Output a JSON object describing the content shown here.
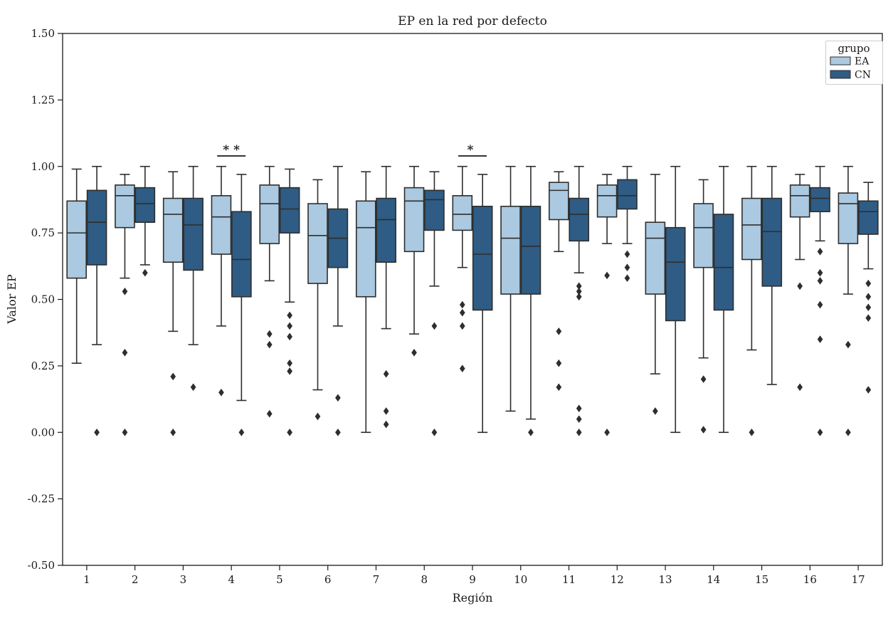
{
  "chart_data": {
    "type": "grouped_boxplot",
    "title": "EP en la red por defecto",
    "xlabel": "Región",
    "ylabel": "Valor EP",
    "ylim": [
      -0.5,
      1.5
    ],
    "yticks": [
      {
        "value": 1.5,
        "label": "1.50"
      },
      {
        "value": 1.25,
        "label": "1.25"
      },
      {
        "value": 1.0,
        "label": "1.00"
      },
      {
        "value": 0.75,
        "label": "0.75"
      },
      {
        "value": 0.5,
        "label": "0.50"
      },
      {
        "value": 0.25,
        "label": "0.25"
      },
      {
        "value": 0.0,
        "label": "0.00"
      },
      {
        "value": -0.25,
        "label": "-0.25"
      },
      {
        "value": -0.5,
        "label": "-0.50"
      }
    ],
    "categories": [
      "1",
      "2",
      "3",
      "4",
      "5",
      "6",
      "7",
      "8",
      "9",
      "10",
      "11",
      "12",
      "13",
      "14",
      "15",
      "16",
      "17"
    ],
    "legend": {
      "title": "grupo",
      "position": "upper right"
    },
    "grid": false,
    "series": [
      {
        "name": "EA",
        "color": "#abc9e0",
        "boxes": [
          {
            "whislo": 0.26,
            "q1": 0.58,
            "med": 0.75,
            "q3": 0.87,
            "whishi": 0.99,
            "fliers": []
          },
          {
            "whislo": 0.58,
            "q1": 0.77,
            "med": 0.89,
            "q3": 0.93,
            "whishi": 0.97,
            "fliers": [
              0.53,
              0.3,
              0.0
            ]
          },
          {
            "whislo": 0.38,
            "q1": 0.64,
            "med": 0.82,
            "q3": 0.88,
            "whishi": 0.98,
            "fliers": [
              0.21,
              0.0
            ]
          },
          {
            "whislo": 0.4,
            "q1": 0.67,
            "med": 0.81,
            "q3": 0.89,
            "whishi": 1.0,
            "fliers": [
              0.15
            ]
          },
          {
            "whislo": 0.57,
            "q1": 0.71,
            "med": 0.86,
            "q3": 0.93,
            "whishi": 1.0,
            "fliers": [
              0.37,
              0.33,
              0.07
            ]
          },
          {
            "whislo": 0.16,
            "q1": 0.56,
            "med": 0.74,
            "q3": 0.86,
            "whishi": 0.95,
            "fliers": [
              0.06
            ]
          },
          {
            "whislo": 0.0,
            "q1": 0.51,
            "med": 0.77,
            "q3": 0.87,
            "whishi": 0.98,
            "fliers": []
          },
          {
            "whislo": 0.37,
            "q1": 0.68,
            "med": 0.87,
            "q3": 0.92,
            "whishi": 1.0,
            "fliers": [
              0.3
            ]
          },
          {
            "whislo": 0.62,
            "q1": 0.76,
            "med": 0.82,
            "q3": 0.89,
            "whishi": 1.0,
            "fliers": [
              0.48,
              0.45,
              0.4,
              0.24
            ]
          },
          {
            "whislo": 0.08,
            "q1": 0.52,
            "med": 0.73,
            "q3": 0.85,
            "whishi": 1.0,
            "fliers": []
          },
          {
            "whislo": 0.68,
            "q1": 0.8,
            "med": 0.91,
            "q3": 0.94,
            "whishi": 0.98,
            "fliers": [
              0.38,
              0.26,
              0.17
            ]
          },
          {
            "whislo": 0.71,
            "q1": 0.81,
            "med": 0.89,
            "q3": 0.93,
            "whishi": 0.97,
            "fliers": [
              0.59,
              0.0
            ]
          },
          {
            "whislo": 0.22,
            "q1": 0.52,
            "med": 0.73,
            "q3": 0.79,
            "whishi": 0.97,
            "fliers": [
              0.08
            ]
          },
          {
            "whislo": 0.28,
            "q1": 0.62,
            "med": 0.77,
            "q3": 0.86,
            "whishi": 0.95,
            "fliers": [
              0.2,
              0.01
            ]
          },
          {
            "whislo": 0.31,
            "q1": 0.65,
            "med": 0.78,
            "q3": 0.88,
            "whishi": 1.0,
            "fliers": [
              0.0
            ]
          },
          {
            "whislo": 0.65,
            "q1": 0.81,
            "med": 0.89,
            "q3": 0.93,
            "whishi": 0.97,
            "fliers": [
              0.55,
              0.17
            ]
          },
          {
            "whislo": 0.52,
            "q1": 0.71,
            "med": 0.86,
            "q3": 0.9,
            "whishi": 1.0,
            "fliers": [
              0.33,
              0.0
            ]
          }
        ]
      },
      {
        "name": "CN",
        "color": "#2e5c84",
        "boxes": [
          {
            "whislo": 0.33,
            "q1": 0.63,
            "med": 0.79,
            "q3": 0.91,
            "whishi": 1.0,
            "fliers": [
              0.0
            ]
          },
          {
            "whislo": 0.63,
            "q1": 0.79,
            "med": 0.86,
            "q3": 0.92,
            "whishi": 1.0,
            "fliers": [
              0.6
            ]
          },
          {
            "whislo": 0.33,
            "q1": 0.61,
            "med": 0.78,
            "q3": 0.88,
            "whishi": 1.0,
            "fliers": [
              0.17
            ]
          },
          {
            "whislo": 0.12,
            "q1": 0.51,
            "med": 0.65,
            "q3": 0.83,
            "whishi": 0.97,
            "fliers": [
              0.0
            ]
          },
          {
            "whislo": 0.49,
            "q1": 0.75,
            "med": 0.84,
            "q3": 0.92,
            "whishi": 0.99,
            "fliers": [
              0.44,
              0.4,
              0.36,
              0.26,
              0.23,
              0.0
            ]
          },
          {
            "whislo": 0.4,
            "q1": 0.62,
            "med": 0.73,
            "q3": 0.84,
            "whishi": 1.0,
            "fliers": [
              0.13,
              0.0
            ]
          },
          {
            "whislo": 0.39,
            "q1": 0.64,
            "med": 0.8,
            "q3": 0.88,
            "whishi": 1.0,
            "fliers": [
              0.22,
              0.08,
              0.03
            ]
          },
          {
            "whislo": 0.55,
            "q1": 0.76,
            "med": 0.875,
            "q3": 0.91,
            "whishi": 0.98,
            "fliers": [
              0.4,
              0.0
            ]
          },
          {
            "whislo": 0.0,
            "q1": 0.46,
            "med": 0.67,
            "q3": 0.85,
            "whishi": 0.97,
            "fliers": []
          },
          {
            "whislo": 0.05,
            "q1": 0.52,
            "med": 0.7,
            "q3": 0.85,
            "whishi": 1.0,
            "fliers": [
              0.0
            ]
          },
          {
            "whislo": 0.6,
            "q1": 0.72,
            "med": 0.82,
            "q3": 0.88,
            "whishi": 1.0,
            "fliers": [
              0.55,
              0.53,
              0.51,
              0.09,
              0.05,
              0.0
            ]
          },
          {
            "whislo": 0.71,
            "q1": 0.84,
            "med": 0.89,
            "q3": 0.95,
            "whishi": 1.0,
            "fliers": [
              0.67,
              0.62,
              0.58
            ]
          },
          {
            "whislo": 0.0,
            "q1": 0.42,
            "med": 0.64,
            "q3": 0.77,
            "whishi": 1.0,
            "fliers": []
          },
          {
            "whislo": 0.0,
            "q1": 0.46,
            "med": 0.62,
            "q3": 0.82,
            "whishi": 1.0,
            "fliers": []
          },
          {
            "whislo": 0.18,
            "q1": 0.55,
            "med": 0.755,
            "q3": 0.88,
            "whishi": 1.0,
            "fliers": []
          },
          {
            "whislo": 0.72,
            "q1": 0.83,
            "med": 0.88,
            "q3": 0.92,
            "whishi": 1.0,
            "fliers": [
              0.68,
              0.6,
              0.57,
              0.48,
              0.35,
              0.0
            ]
          },
          {
            "whislo": 0.615,
            "q1": 0.745,
            "med": 0.83,
            "q3": 0.87,
            "whishi": 0.94,
            "fliers": [
              0.56,
              0.51,
              0.47,
              0.43,
              0.16
            ]
          }
        ]
      }
    ],
    "annotations": [
      {
        "region": "4",
        "label": "**"
      },
      {
        "region": "9",
        "label": "*"
      }
    ]
  }
}
